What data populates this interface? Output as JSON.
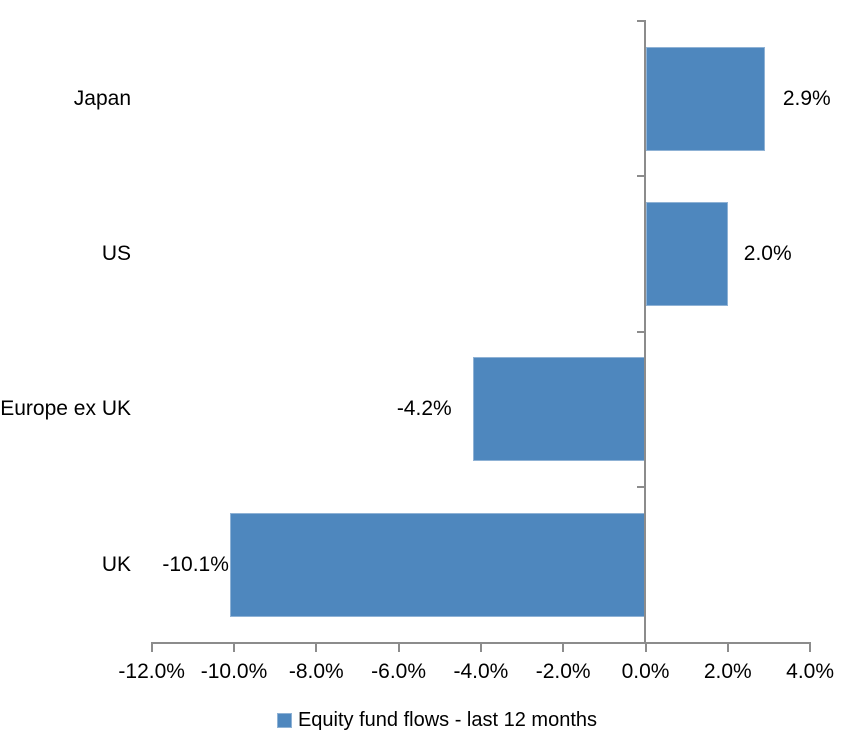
{
  "chart_data": {
    "type": "bar",
    "orientation": "horizontal",
    "title": "",
    "categories": [
      "Japan",
      "US",
      "Europe ex UK",
      "UK"
    ],
    "values": [
      2.9,
      2.0,
      -4.2,
      -10.1
    ],
    "value_labels": [
      "2.9%",
      "2.0%",
      "-4.2%",
      "-10.1%"
    ],
    "series_name": "Equity fund flows - last 12 months",
    "x_tick_labels": [
      "-12.0%",
      "-10.0%",
      "-8.0%",
      "-6.0%",
      "-4.0%",
      "-2.0%",
      "0.0%",
      "2.0%",
      "4.0%"
    ],
    "x_tick_values": [
      -12,
      -10,
      -8,
      -6,
      -4,
      -2,
      0,
      2,
      4
    ],
    "xlim": [
      -12,
      4
    ],
    "grid": false,
    "legend_position": "bottom",
    "bar_color": "#4E87BE",
    "axis_color": "#8C8C8C"
  },
  "legend": {
    "label": "Equity fund flows - last 12 months",
    "swatch_color": "#4E87BE"
  }
}
